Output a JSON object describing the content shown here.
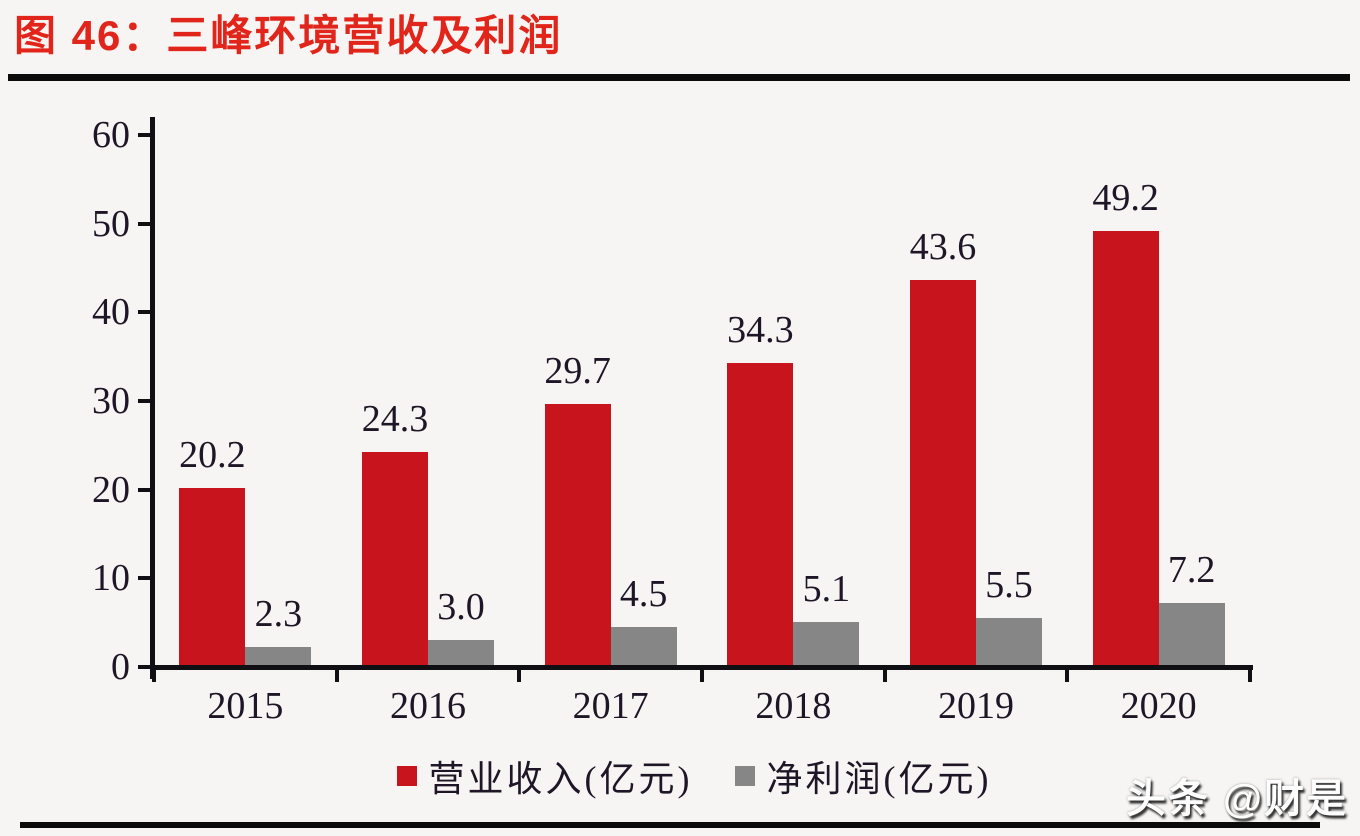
{
  "title": "图 46：三峰环境营收及利润",
  "watermark": "头条 @财是",
  "colors": {
    "title_red": "#e1251a",
    "revenue_bar": "#c8141c",
    "profit_bar": "#868686",
    "axis_black": "#101014",
    "background": "#f7f5f3"
  },
  "chart_data": {
    "type": "bar",
    "categories": [
      "2015",
      "2016",
      "2017",
      "2018",
      "2019",
      "2020"
    ],
    "series": [
      {
        "name": "营业收入(亿元)",
        "color": "#c8141c",
        "values": [
          20.2,
          24.3,
          29.7,
          34.3,
          43.6,
          49.2
        ]
      },
      {
        "name": "净利润(亿元)",
        "color": "#868686",
        "values": [
          2.3,
          3.0,
          4.5,
          5.1,
          5.5,
          7.2
        ]
      }
    ],
    "ylim": [
      0,
      60
    ],
    "yticks": [
      0,
      10,
      20,
      30,
      40,
      50,
      60
    ],
    "xlabel": "",
    "ylabel": "",
    "grid": false,
    "value_labels": true,
    "value_label_decimals": 1,
    "legend_position": "bottom"
  }
}
